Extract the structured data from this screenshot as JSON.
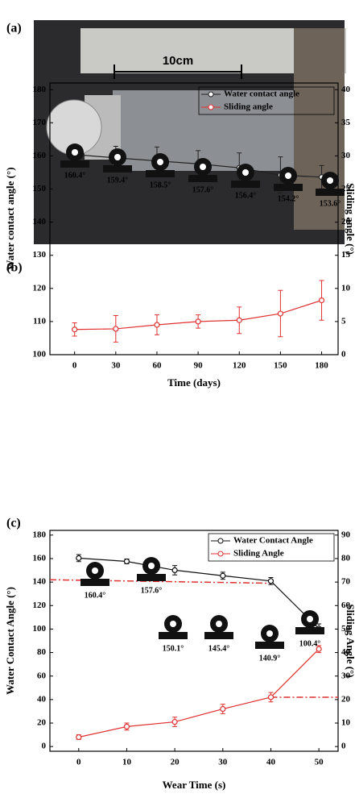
{
  "panels": [
    "(a)",
    "(b)",
    "(c)"
  ],
  "photo": {
    "scale_label": "10cm"
  },
  "chart_data": [
    {
      "type": "line",
      "x_label": "Time (days)",
      "y_label": "Water contact angle (°)",
      "y2_label": "Sliding angle (°)",
      "x": [
        0,
        30,
        60,
        90,
        120,
        150,
        180
      ],
      "xlim": [
        -18,
        192
      ],
      "xticks": [
        0,
        30,
        60,
        90,
        120,
        150,
        180
      ],
      "ylim": [
        100,
        182
      ],
      "yticks": [
        100,
        110,
        120,
        130,
        140,
        150,
        160,
        170,
        180
      ],
      "y2lim": [
        0,
        41
      ],
      "y2ticks": [
        0,
        5,
        10,
        15,
        20,
        25,
        30,
        35,
        40
      ],
      "series": [
        {
          "name": "Water contact angle",
          "color": "#222222",
          "values": [
            160.4,
            159.4,
            158.5,
            157.6,
            156.4,
            154.2,
            153.6
          ],
          "errors": [
            1.5,
            3.5,
            4.2,
            4,
            4.5,
            5.5,
            3.5
          ]
        },
        {
          "name": "Sliding angle",
          "color": "#e03030",
          "axis": "y2",
          "values": [
            3.8,
            3.9,
            4.5,
            5,
            5.2,
            6.2,
            8.2
          ],
          "errors": [
            1,
            2,
            1.5,
            1,
            2,
            3.5,
            3
          ]
        }
      ],
      "annotations": [
        "160.4°",
        "159.4°",
        "158.5°",
        "157.6°",
        "156.4°",
        "154.2°",
        "153.6°"
      ],
      "legend": "upper right"
    },
    {
      "type": "line",
      "x_label": "Wear Time (s)",
      "y_label": "Water Contact Angle (°)",
      "y2_label": "Sliding Angle (°)",
      "x": [
        0,
        10,
        20,
        30,
        40,
        50
      ],
      "xlim": [
        -6,
        54
      ],
      "xticks": [
        0,
        10,
        20,
        30,
        40,
        50
      ],
      "ylim": [
        -4,
        184
      ],
      "yticks": [
        0,
        20,
        40,
        60,
        80,
        100,
        120,
        140,
        160,
        180
      ],
      "y2lim": [
        -2,
        92
      ],
      "y2ticks": [
        0,
        10,
        20,
        30,
        40,
        50,
        60,
        70,
        80,
        90
      ],
      "series": [
        {
          "name": "Water Contact Angle",
          "color": "#111111",
          "values": [
            160.4,
            157.6,
            150.1,
            145.4,
            140.9,
            100.4
          ],
          "errors": [
            3,
            2,
            4,
            3,
            3,
            4
          ]
        },
        {
          "name": "Sliding Angle",
          "color": "#e03030",
          "axis": "y2",
          "values": [
            4,
            8.5,
            10.5,
            16,
            21,
            41.5
          ],
          "errors": [
            1,
            1.5,
            2,
            2,
            2,
            1.5
          ]
        }
      ],
      "ref_lines": [
        {
          "x": [
            -6,
            40
          ],
          "y": [
            142,
            139
          ]
        },
        {
          "x": [
            40,
            54
          ],
          "y": [
            42,
            42
          ]
        }
      ],
      "annotations": [
        "160.4°",
        "157.6°",
        "150.1°",
        "145.4°",
        "140.9°",
        "100.4°"
      ],
      "legend": "upper right"
    }
  ]
}
